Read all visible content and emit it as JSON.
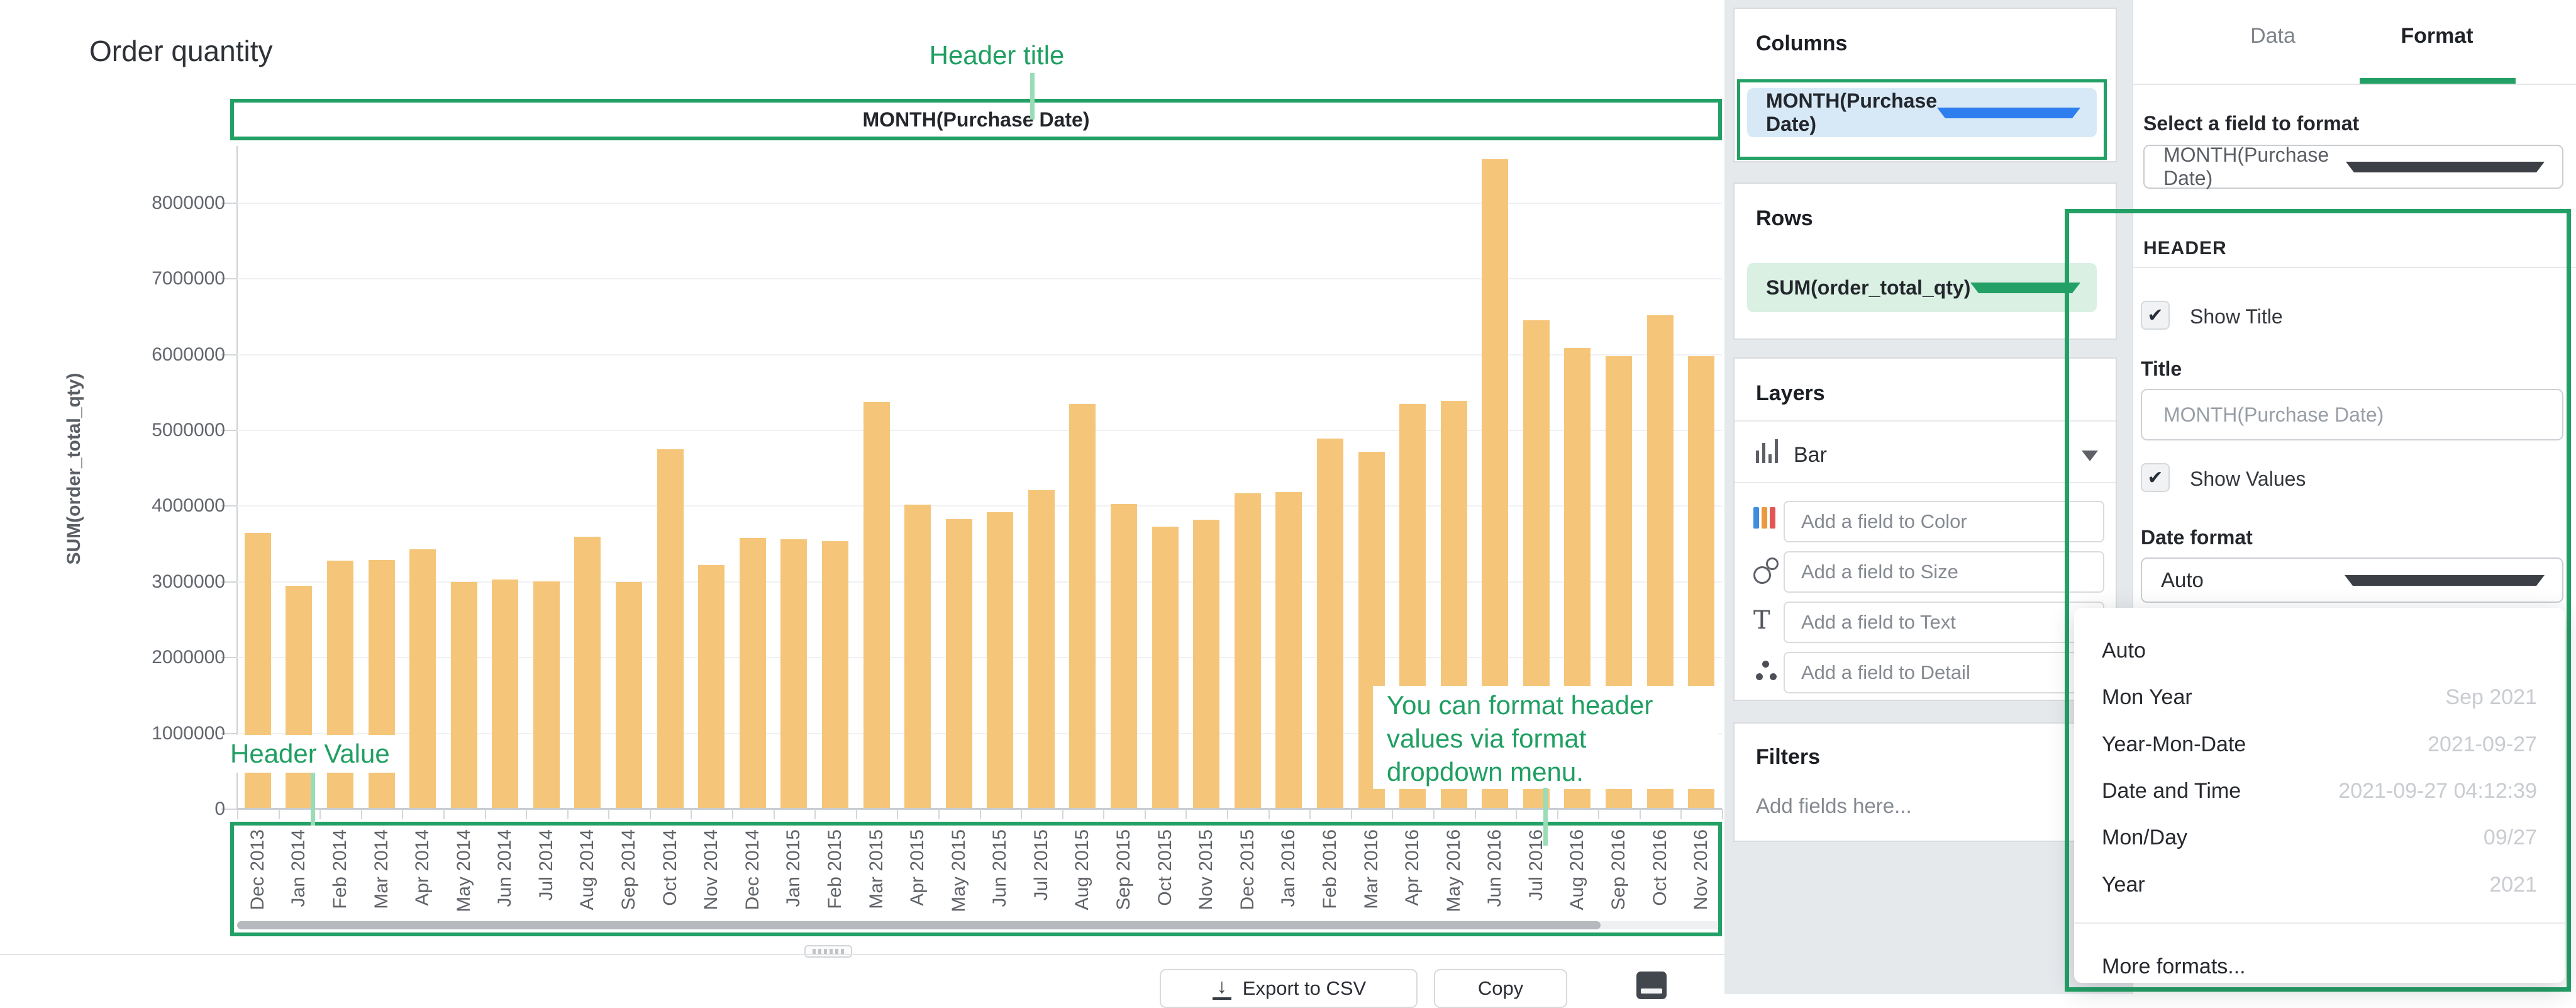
{
  "chart": {
    "title": "Order quantity",
    "header_box": "MONTH(Purchase Date)",
    "y_axis_title": "SUM(order_total_qty)",
    "footer": {
      "export": "Export to CSV",
      "copy": "Copy"
    }
  },
  "chart_data": {
    "type": "bar",
    "title": "Order quantity",
    "xlabel": "MONTH(Purchase Date)",
    "ylabel": "SUM(order_total_qty)",
    "ylim": [
      0,
      8800000
    ],
    "grid": true,
    "bar_color": "#f5c679",
    "ytick_values": [
      0,
      1000000,
      2000000,
      3000000,
      4000000,
      5000000,
      6000000,
      7000000,
      8000000
    ],
    "ytick_labels": [
      "0",
      "1000000",
      "2000000",
      "3000000",
      "4000000",
      "5000000",
      "6000000",
      "7000000",
      "8000000"
    ],
    "categories": [
      "Dec 2013",
      "Jan 2014",
      "Feb 2014",
      "Mar 2014",
      "Apr 2014",
      "May 2014",
      "Jun 2014",
      "Jul 2014",
      "Aug 2014",
      "Sep 2014",
      "Oct 2014",
      "Nov 2014",
      "Dec 2014",
      "Jan 2015",
      "Feb 2015",
      "Mar 2015",
      "Apr 2015",
      "May 2015",
      "Jun 2015",
      "Jul 2015",
      "Aug 2015",
      "Sep 2015",
      "Oct 2015",
      "Nov 2015",
      "Dec 2015",
      "Jan 2016",
      "Feb 2016",
      "Mar 2016",
      "Apr 2016",
      "May 2016",
      "Jun 2016",
      "Jul 2016",
      "Aug 2016",
      "Sep 2016",
      "Oct 2016",
      "Nov 2016"
    ],
    "values": [
      3650000,
      2950000,
      3280000,
      3290000,
      3430000,
      3000000,
      3030000,
      3010000,
      3600000,
      3000000,
      4750000,
      3220000,
      3580000,
      3560000,
      3540000,
      5370000,
      4020000,
      3830000,
      3920000,
      4210000,
      5350000,
      4030000,
      3730000,
      3820000,
      4170000,
      4190000,
      4890000,
      4720000,
      5350000,
      5390000,
      8580000,
      6450000,
      6090000,
      5980000,
      6520000,
      5980000
    ]
  },
  "annotations": {
    "header_title": "Header title",
    "header_value": "Header Value",
    "format_note_lines": [
      "You can format header",
      "values via format",
      "dropdown menu."
    ]
  },
  "panels": {
    "columns": {
      "title": "Columns",
      "field": "MONTH(Purchase Date)"
    },
    "rows": {
      "title": "Rows",
      "field": "SUM(order_total_qty)"
    },
    "layers": {
      "title": "Layers",
      "layer_type": "Bar",
      "fields": [
        "Add a field to Color",
        "Add a field to Size",
        "Add a field to Text",
        "Add a field to Detail"
      ]
    },
    "filters": {
      "title": "Filters",
      "placeholder": "Add fields here..."
    }
  },
  "format_panel": {
    "tabs": [
      {
        "label": "Data"
      },
      {
        "label": "Format"
      }
    ],
    "active_tab": "Format",
    "select_label": "Select a field to format",
    "select_value": "MONTH(Purchase Date)",
    "header_section": {
      "title": "HEADER",
      "show_title": "Show Title",
      "show_title_checked": true,
      "title_label": "Title",
      "title_placeholder": "MONTH(Purchase Date)",
      "show_values": "Show Values",
      "show_values_checked": true,
      "date_format_label": "Date format",
      "date_format_value": "Auto"
    },
    "menu": {
      "items": [
        {
          "label": "Auto",
          "example": ""
        },
        {
          "label": "Mon Year",
          "example": "Sep 2021"
        },
        {
          "label": "Year-Mon-Date",
          "example": "2021-09-27"
        },
        {
          "label": "Date and Time",
          "example": "2021-09-27 04:12:39"
        },
        {
          "label": "Mon/Day",
          "example": "09/27"
        },
        {
          "label": "Year",
          "example": "2021"
        }
      ],
      "footer": "More formats..."
    }
  },
  "colors": {
    "accent_green": "#22a065",
    "annotation_green": "#1f9f62",
    "bar": "#f5c679",
    "columns_pill_bg": "#d7e9f6",
    "columns_caret": "#2e7ef0",
    "rows_pill_bg": "#d9f0e3",
    "rows_caret": "#22a065"
  }
}
